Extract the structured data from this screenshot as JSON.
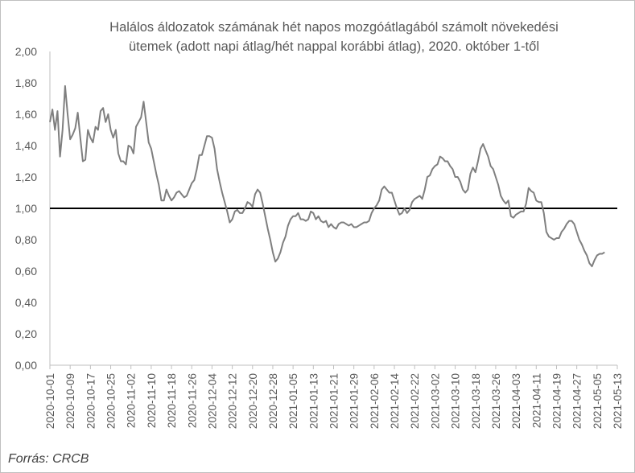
{
  "chart_data": {
    "type": "line",
    "title_line1": "Halálos áldozatok számának hét napos mozgóátlagából számolt növekedési",
    "title_line2": "ütemek (adott napi átlag/hét nappal korábbi átlag), 2020. október 1-től",
    "source": "Forrás: CRCB",
    "ylim": [
      0,
      2
    ],
    "yticks": [
      "0,00",
      "0,20",
      "0,40",
      "0,60",
      "0,80",
      "1,00",
      "1,20",
      "1,40",
      "1,60",
      "1,80",
      "2,00"
    ],
    "xticks": [
      "2020-10-01",
      "2020-10-09",
      "2020-10-17",
      "2020-10-25",
      "2020-11-02",
      "2020-11-10",
      "2020-11-18",
      "2020-11-26",
      "2020-12-04",
      "2020-12-12",
      "2020-12-20",
      "2020-12-28",
      "2021-01-05",
      "2021-01-13",
      "2021-01-21",
      "2021-01-29",
      "2021-02-06",
      "2021-02-14",
      "2021-02-22",
      "2021-03-02",
      "2021-03-10",
      "2021-03-18",
      "2021-03-26",
      "2021-04-03",
      "2021-04-11",
      "2021-04-19",
      "2021-04-27",
      "2021-05-05",
      "2021-05-13"
    ],
    "reference_line": 1.0,
    "grid": false,
    "legend": "none",
    "colors": {
      "series": "#7f7f7f",
      "reference": "#000000",
      "axis": "#bfbfbf",
      "text": "#595959"
    },
    "series": [
      {
        "x_start": "2020-10-01",
        "step_days": 1,
        "values": [
          1.55,
          1.63,
          1.5,
          1.62,
          1.33,
          1.5,
          1.78,
          1.6,
          1.44,
          1.47,
          1.51,
          1.61,
          1.45,
          1.3,
          1.31,
          1.5,
          1.45,
          1.42,
          1.52,
          1.5,
          1.62,
          1.64,
          1.55,
          1.6,
          1.5,
          1.45,
          1.5,
          1.35,
          1.3,
          1.3,
          1.28,
          1.4,
          1.39,
          1.35,
          1.52,
          1.55,
          1.58,
          1.68,
          1.55,
          1.42,
          1.38,
          1.3,
          1.22,
          1.15,
          1.05,
          1.05,
          1.12,
          1.08,
          1.05,
          1.07,
          1.1,
          1.11,
          1.09,
          1.07,
          1.08,
          1.12,
          1.16,
          1.18,
          1.25,
          1.34,
          1.34,
          1.4,
          1.46,
          1.46,
          1.45,
          1.38,
          1.25,
          1.17,
          1.1,
          1.04,
          0.98,
          0.91,
          0.93,
          0.98,
          0.99,
          0.97,
          0.97,
          1.0,
          1.04,
          1.03,
          1.01,
          1.09,
          1.12,
          1.1,
          1.03,
          0.95,
          0.87,
          0.8,
          0.72,
          0.66,
          0.68,
          0.72,
          0.78,
          0.82,
          0.89,
          0.93,
          0.95,
          0.95,
          0.97,
          0.93,
          0.93,
          0.92,
          0.93,
          0.98,
          0.97,
          0.93,
          0.95,
          0.92,
          0.91,
          0.92,
          0.88,
          0.9,
          0.88,
          0.87,
          0.9,
          0.91,
          0.91,
          0.9,
          0.89,
          0.9,
          0.88,
          0.88,
          0.89,
          0.9,
          0.91,
          0.91,
          0.92,
          0.97,
          1.0,
          1.02,
          1.05,
          1.12,
          1.14,
          1.12,
          1.1,
          1.1,
          1.05,
          1.0,
          0.96,
          0.97,
          1.0,
          0.97,
          0.99,
          1.04,
          1.06,
          1.07,
          1.08,
          1.06,
          1.12,
          1.2,
          1.21,
          1.25,
          1.27,
          1.28,
          1.33,
          1.32,
          1.3,
          1.3,
          1.27,
          1.25,
          1.2,
          1.2,
          1.17,
          1.12,
          1.1,
          1.12,
          1.22,
          1.26,
          1.23,
          1.3,
          1.38,
          1.41,
          1.37,
          1.33,
          1.27,
          1.25,
          1.2,
          1.15,
          1.08,
          1.05,
          1.03,
          1.05,
          0.95,
          0.94,
          0.96,
          0.97,
          0.98,
          0.98,
          1.03,
          1.13,
          1.11,
          1.1,
          1.05,
          1.04,
          1.04,
          0.97,
          0.85,
          0.82,
          0.81,
          0.8,
          0.81,
          0.81,
          0.85,
          0.87,
          0.9,
          0.92,
          0.92,
          0.9,
          0.85,
          0.8,
          0.77,
          0.73,
          0.7,
          0.65,
          0.63,
          0.67,
          0.7,
          0.71,
          0.71,
          0.72
        ]
      }
    ]
  }
}
